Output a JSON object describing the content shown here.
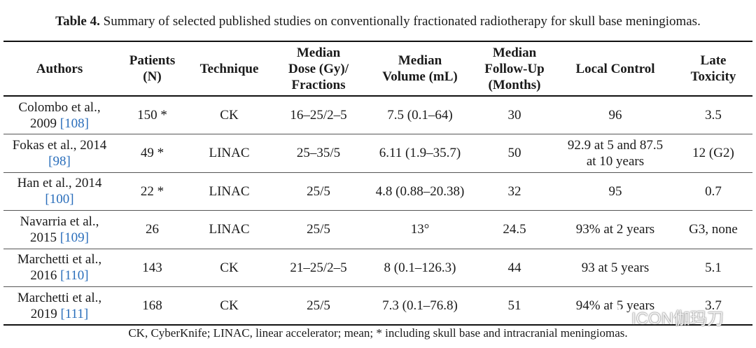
{
  "caption": {
    "label": "Table 4.",
    "text": " Summary of selected published studies on conventionally fractionated radiotherapy for skull base meningiomas."
  },
  "table": {
    "headers": [
      [
        "Authors"
      ],
      [
        "Patients",
        "(N)"
      ],
      [
        "Technique"
      ],
      [
        "Median",
        "Dose (Gy)/",
        "Fractions"
      ],
      [
        "Median",
        "Volume (mL)"
      ],
      [
        "Median",
        "Follow-Up",
        "(Months)"
      ],
      [
        "Local Control"
      ],
      [
        "Late",
        "Toxicity"
      ]
    ],
    "rows": [
      {
        "author": [
          "Colombo et al.,",
          "2009 "
        ],
        "ref": "[108]",
        "patients": "150 *",
        "technique": "CK",
        "dose": "16–25/2–5",
        "volume": "7.5 (0.1–64)",
        "followup": "30",
        "control": [
          "96"
        ],
        "toxicity": "3.5"
      },
      {
        "author": [
          "Fokas et al., 2014",
          ""
        ],
        "ref": "[98]",
        "patients": "49 *",
        "technique": "LINAC",
        "dose": "25–35/5",
        "volume": "6.11 (1.9–35.7)",
        "followup": "50",
        "control": [
          "92.9 at 5 and 87.5",
          "at 10 years"
        ],
        "toxicity": "12 (G2)"
      },
      {
        "author": [
          "Han et al., 2014",
          ""
        ],
        "ref": "[100]",
        "patients": "22 *",
        "technique": "LINAC",
        "dose": "25/5",
        "volume": "4.8 (0.88–20.38)",
        "followup": "32",
        "control": [
          "95"
        ],
        "toxicity": "0.7"
      },
      {
        "author": [
          "Navarria et al.,",
          "2015 "
        ],
        "ref": "[109]",
        "patients": "26",
        "technique": "LINAC",
        "dose": "25/5",
        "volume": "13°",
        "followup": "24.5",
        "control": [
          "93% at 2 years"
        ],
        "toxicity": "G3, none"
      },
      {
        "author": [
          "Marchetti et al.,",
          "2016 "
        ],
        "ref": "[110]",
        "patients": "143",
        "technique": "CK",
        "dose": "21–25/2–5",
        "volume": "8 (0.1–126.3)",
        "followup": "44",
        "control": [
          "93 at 5 years"
        ],
        "toxicity": "5.1"
      },
      {
        "author": [
          "Marchetti et al.,",
          "2019 "
        ],
        "ref": "[111]",
        "patients": "168",
        "technique": "CK",
        "dose": "25/5",
        "volume": "7.3 (0.1–76.8)",
        "followup": "51",
        "control": [
          "94% at 5 years"
        ],
        "toxicity": "3.7"
      }
    ]
  },
  "footnote": "CK, CyberKnife; LINAC, linear accelerator; mean; * including skull base and intracranial meningiomas.",
  "watermark": {
    "icon": "wechat-icon",
    "text": "ICON伽玛刀"
  }
}
